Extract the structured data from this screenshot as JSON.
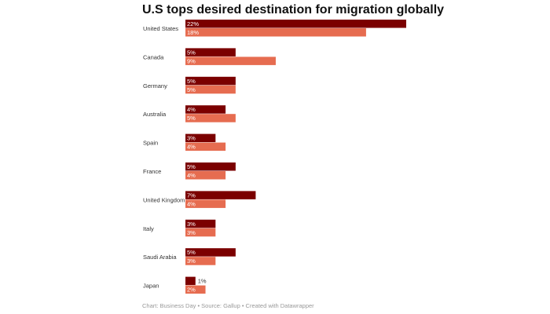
{
  "chart_data": {
    "type": "bar",
    "orientation": "horizontal",
    "title": "U.S tops desired destination for migration globally",
    "categories": [
      "United States",
      "Canada",
      "Germany",
      "Australia",
      "Spain",
      "France",
      "United Kingdom",
      "Italy",
      "Saudi Arabia",
      "Japan"
    ],
    "series": [
      {
        "name": "",
        "color": "#7b0000",
        "values": [
          22,
          5,
          5,
          4,
          3,
          5,
          7,
          3,
          5,
          1
        ]
      },
      {
        "name": "",
        "color": "#e66c50",
        "values": [
          18,
          9,
          5,
          5,
          4,
          4,
          4,
          3,
          3,
          2
        ]
      }
    ],
    "value_suffix": "%",
    "xlim": [
      0,
      22
    ],
    "grid": false,
    "footer": "Chart: Business Day • Source: Gallup • Created with Datawrapper"
  }
}
